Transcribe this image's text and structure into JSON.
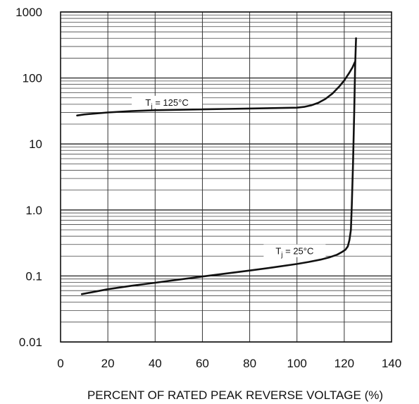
{
  "chart_data": {
    "type": "line",
    "xlabel": "PERCENT OF RATED PEAK REVERSE VOLTAGE (%)",
    "ylabel": "",
    "xlim": [
      0,
      140
    ],
    "ylim": [
      0.01,
      1000
    ],
    "y_scale": "log",
    "grid": true,
    "x_ticks": [
      0,
      20,
      40,
      60,
      80,
      100,
      120,
      140
    ],
    "x_tick_labels": [
      "0",
      "20",
      "40",
      "60",
      "80",
      "100",
      "120",
      "140"
    ],
    "y_ticks": [
      0.01,
      0.1,
      1,
      10,
      100,
      1000
    ],
    "y_tick_labels": [
      "0.01",
      "0.1",
      "1.0",
      "10",
      "100",
      "1000"
    ],
    "series": [
      {
        "name_parts": {
          "main": "T",
          "sub": "j",
          "rest": " =  125°C"
        },
        "color": "#111111",
        "x": [
          7,
          10,
          20,
          30,
          40,
          50,
          60,
          70,
          80,
          90,
          100,
          103,
          106,
          109,
          112,
          115,
          118,
          120,
          122,
          123.5,
          124.5
        ],
        "y": [
          27,
          28,
          30,
          31.5,
          32.5,
          33,
          33.5,
          34,
          34.5,
          35,
          35.5,
          36.5,
          38.5,
          42,
          48,
          58,
          75,
          92,
          118,
          145,
          175
        ]
      },
      {
        "name_parts": {
          "main": "T",
          "sub": "j",
          "rest": " =  25°C"
        },
        "color": "#111111",
        "x": [
          9,
          20,
          30,
          40,
          50,
          60,
          70,
          80,
          90,
          100,
          105,
          110,
          114,
          117,
          119,
          120.5,
          121.5,
          122.2,
          122.8,
          123.2,
          123.7,
          124.2,
          124.6,
          125
        ],
        "y": [
          0.053,
          0.063,
          0.071,
          0.079,
          0.088,
          0.098,
          0.109,
          0.121,
          0.135,
          0.152,
          0.163,
          0.177,
          0.193,
          0.21,
          0.23,
          0.25,
          0.28,
          0.35,
          0.5,
          1.2,
          5,
          30,
          150,
          400
        ]
      }
    ]
  }
}
